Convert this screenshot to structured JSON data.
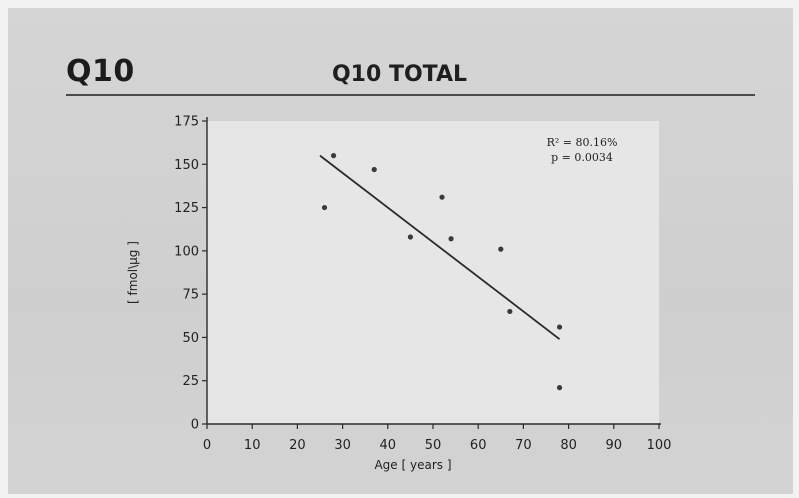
{
  "slide": {
    "label": "Q10",
    "title": "Q10 TOTAL"
  },
  "chart_data": {
    "type": "scatter",
    "title": "Q10 TOTAL",
    "xlabel": "Age [ years ]",
    "ylabel": "[ fmol\\µg ]",
    "xlim": [
      0,
      100
    ],
    "ylim": [
      0,
      175
    ],
    "x_ticks": [
      0,
      10,
      20,
      30,
      40,
      50,
      60,
      70,
      80,
      90,
      100
    ],
    "y_ticks": [
      0,
      25,
      50,
      75,
      100,
      125,
      150,
      175
    ],
    "grid": false,
    "series": [
      {
        "x": [
          26,
          28,
          37,
          45,
          52,
          54,
          65,
          67,
          78,
          78
        ],
        "y": [
          125,
          155,
          147,
          108,
          131,
          107,
          101,
          65,
          56,
          21
        ]
      }
    ],
    "trendline": {
      "x": [
        25,
        78
      ],
      "y": [
        155,
        49
      ]
    },
    "annotations": {
      "r_squared": "R² = 80.16%",
      "p_value": "p = 0.0034"
    },
    "colors": {
      "plot_bg": "#e6e6e6",
      "ink": "#2a2a2a"
    }
  }
}
